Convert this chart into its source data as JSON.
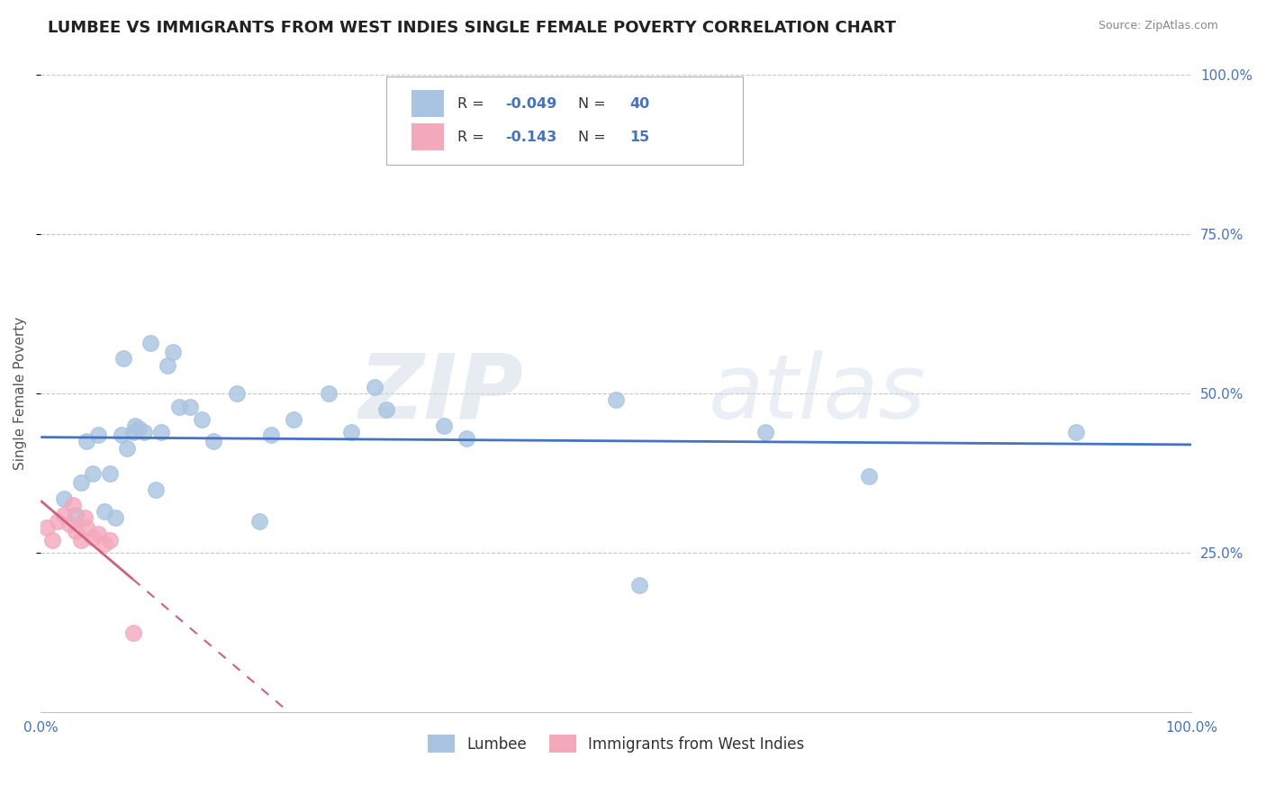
{
  "title": "LUMBEE VS IMMIGRANTS FROM WEST INDIES SINGLE FEMALE POVERTY CORRELATION CHART",
  "source": "Source: ZipAtlas.com",
  "ylabel": "Single Female Poverty",
  "xlim": [
    0.0,
    1.0
  ],
  "ylim": [
    0.0,
    1.0
  ],
  "ytick_positions": [
    0.25,
    0.5,
    0.75,
    1.0
  ],
  "right_ytick_labels": [
    "25.0%",
    "50.0%",
    "75.0%",
    "100.0%"
  ],
  "R_lumbee": -0.049,
  "N_lumbee": 40,
  "R_west_indies": -0.143,
  "N_west_indies": 15,
  "lumbee_color": "#a8c4e0",
  "west_indies_color": "#f4a8bc",
  "lumbee_line_color": "#4472c4",
  "west_indies_line_color": "#d06080",
  "background_color": "#ffffff",
  "grid_color": "#c8c8c8",
  "lumbee_x": [
    0.02,
    0.03,
    0.035,
    0.04,
    0.045,
    0.05,
    0.055,
    0.06,
    0.065,
    0.07,
    0.072,
    0.075,
    0.08,
    0.082,
    0.085,
    0.09,
    0.095,
    0.1,
    0.105,
    0.11,
    0.115,
    0.12,
    0.13,
    0.14,
    0.15,
    0.17,
    0.19,
    0.2,
    0.22,
    0.25,
    0.27,
    0.29,
    0.3,
    0.35,
    0.37,
    0.5,
    0.52,
    0.63,
    0.72,
    0.9
  ],
  "lumbee_y": [
    0.335,
    0.31,
    0.36,
    0.425,
    0.375,
    0.435,
    0.315,
    0.375,
    0.305,
    0.435,
    0.555,
    0.415,
    0.44,
    0.45,
    0.445,
    0.44,
    0.58,
    0.35,
    0.44,
    0.545,
    0.565,
    0.48,
    0.48,
    0.46,
    0.425,
    0.5,
    0.3,
    0.435,
    0.46,
    0.5,
    0.44,
    0.51,
    0.475,
    0.45,
    0.43,
    0.49,
    0.2,
    0.44,
    0.37,
    0.44
  ],
  "west_indies_x": [
    0.005,
    0.01,
    0.015,
    0.02,
    0.025,
    0.028,
    0.03,
    0.035,
    0.038,
    0.04,
    0.045,
    0.05,
    0.055,
    0.06,
    0.08
  ],
  "west_indies_y": [
    0.29,
    0.27,
    0.3,
    0.31,
    0.295,
    0.325,
    0.285,
    0.27,
    0.305,
    0.29,
    0.275,
    0.28,
    0.265,
    0.27,
    0.125
  ],
  "watermark_zip": "ZIP",
  "watermark_atlas": "atlas",
  "title_fontsize": 13,
  "axis_label_fontsize": 11,
  "tick_fontsize": 11,
  "legend_fontsize": 12
}
